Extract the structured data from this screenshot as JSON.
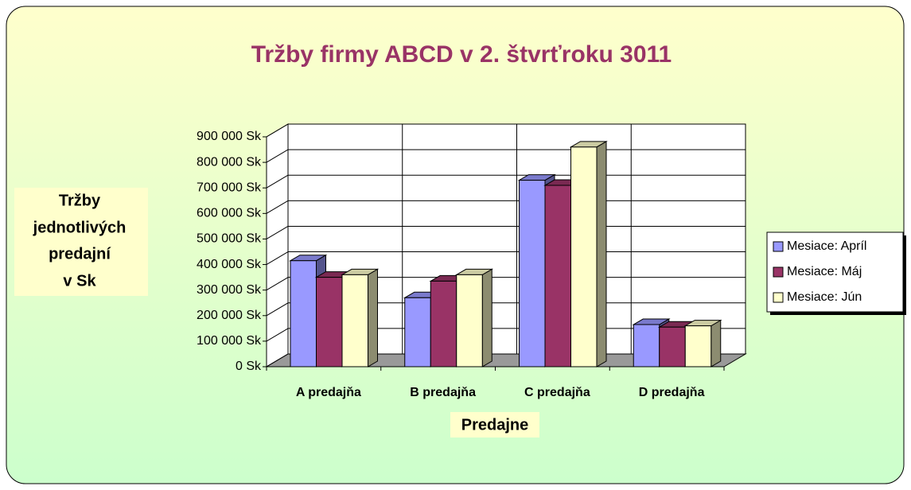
{
  "chart_data": {
    "type": "bar3d",
    "title": "Tržby firmy ABCD v 2. štvrťroku 3011",
    "ylabel": [
      "Tržby",
      "jednotlivých",
      "predajní",
      "v Sk"
    ],
    "xlabel": "Predajne",
    "categories": [
      "A predajňa",
      "B predajňa",
      "C predajňa",
      "D predajňa"
    ],
    "series": [
      {
        "name": "Mesiace: Apríl",
        "color": "#9999ff",
        "values": [
          415000,
          270000,
          730000,
          165000
        ]
      },
      {
        "name": "Mesiace: Máj",
        "color": "#993366",
        "values": [
          350000,
          335000,
          710000,
          155000
        ]
      },
      {
        "name": "Mesiace: Jún",
        "color": "#ffffcc",
        "values": [
          360000,
          360000,
          860000,
          160000
        ]
      }
    ],
    "ylim": [
      0,
      900000
    ],
    "yticks": [
      {
        "value": 0,
        "label": "0 Sk"
      },
      {
        "value": 100000,
        "label": "100 000 Sk"
      },
      {
        "value": 200000,
        "label": "200 000 Sk"
      },
      {
        "value": 300000,
        "label": "300 000 Sk"
      },
      {
        "value": 400000,
        "label": "400 000 Sk"
      },
      {
        "value": 500000,
        "label": "500 000 Sk"
      },
      {
        "value": 600000,
        "label": "600 000 Sk"
      },
      {
        "value": 700000,
        "label": "700 000 Sk"
      },
      {
        "value": 800000,
        "label": "800 000 Sk"
      },
      {
        "value": 900000,
        "label": "900 000 Sk"
      }
    ],
    "grid": true,
    "legend": "right"
  }
}
